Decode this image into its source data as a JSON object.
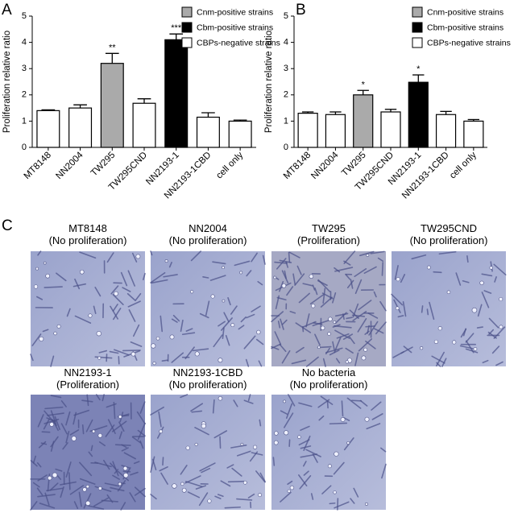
{
  "chart_data": [
    {
      "type": "bar",
      "panel": "A",
      "ylabel": "Proliferation relative ratio",
      "categories": [
        "MT8148",
        "NN2004",
        "TW295",
        "TW295CND",
        "NN2193-1",
        "NN2193-1CBD",
        "cell only"
      ],
      "values": [
        1.4,
        1.5,
        3.2,
        1.68,
        4.1,
        1.15,
        1.0
      ],
      "errors": [
        0.03,
        0.12,
        0.38,
        0.17,
        0.22,
        0.17,
        0.04
      ],
      "bar_colors": [
        "#ffffff",
        "#ffffff",
        "#aaaaaa",
        "#ffffff",
        "#000000",
        "#ffffff",
        "#ffffff"
      ],
      "significance": [
        null,
        null,
        "**",
        null,
        "***",
        null,
        null
      ],
      "legend": [
        {
          "name": "Cnm-positive strains",
          "color": "#aaaaaa"
        },
        {
          "name": "Cbm-positive strains",
          "color": "#000000"
        },
        {
          "name": "CBPs-negative strains",
          "color": "#ffffff"
        }
      ],
      "ylim": [
        0,
        5
      ],
      "yticks": [
        0,
        1,
        2,
        3,
        4,
        5
      ]
    },
    {
      "type": "bar",
      "panel": "B",
      "ylabel": "Proliferation relative ratio",
      "categories": [
        "MT8148",
        "NN2004",
        "TW295",
        "TW295CND",
        "NN2193-1",
        "NN2193-1CBD",
        "cell only"
      ],
      "values": [
        1.3,
        1.25,
        2.0,
        1.35,
        2.48,
        1.25,
        1.0
      ],
      "errors": [
        0.05,
        0.1,
        0.17,
        0.1,
        0.28,
        0.12,
        0.06
      ],
      "bar_colors": [
        "#ffffff",
        "#ffffff",
        "#aaaaaa",
        "#ffffff",
        "#000000",
        "#ffffff",
        "#ffffff"
      ],
      "significance": [
        null,
        null,
        "*",
        null,
        "*",
        null,
        null
      ],
      "legend": [
        {
          "name": "Cnm-positive strains",
          "color": "#aaaaaa"
        },
        {
          "name": "Cbm-positive strains",
          "color": "#000000"
        },
        {
          "name": "CBPs-negative strains",
          "color": "#ffffff"
        }
      ],
      "ylim": [
        0,
        5
      ],
      "yticks": [
        0,
        1,
        2,
        3,
        4,
        5
      ]
    }
  ],
  "panel_c": {
    "label": "C",
    "images": [
      {
        "name": "MT8148",
        "status": "(No proliferation)"
      },
      {
        "name": "NN2004",
        "status": "(No proliferation)"
      },
      {
        "name": "TW295",
        "status": "(Proliferation)"
      },
      {
        "name": "TW295CND",
        "status": "(No proliferation)"
      },
      {
        "name": "NN2193-1",
        "status": "(Proliferation)"
      },
      {
        "name": "NN2193-1CBD",
        "status": "(No proliferation)"
      },
      {
        "name": "No bacteria",
        "status": "(No proliferation)"
      }
    ]
  }
}
